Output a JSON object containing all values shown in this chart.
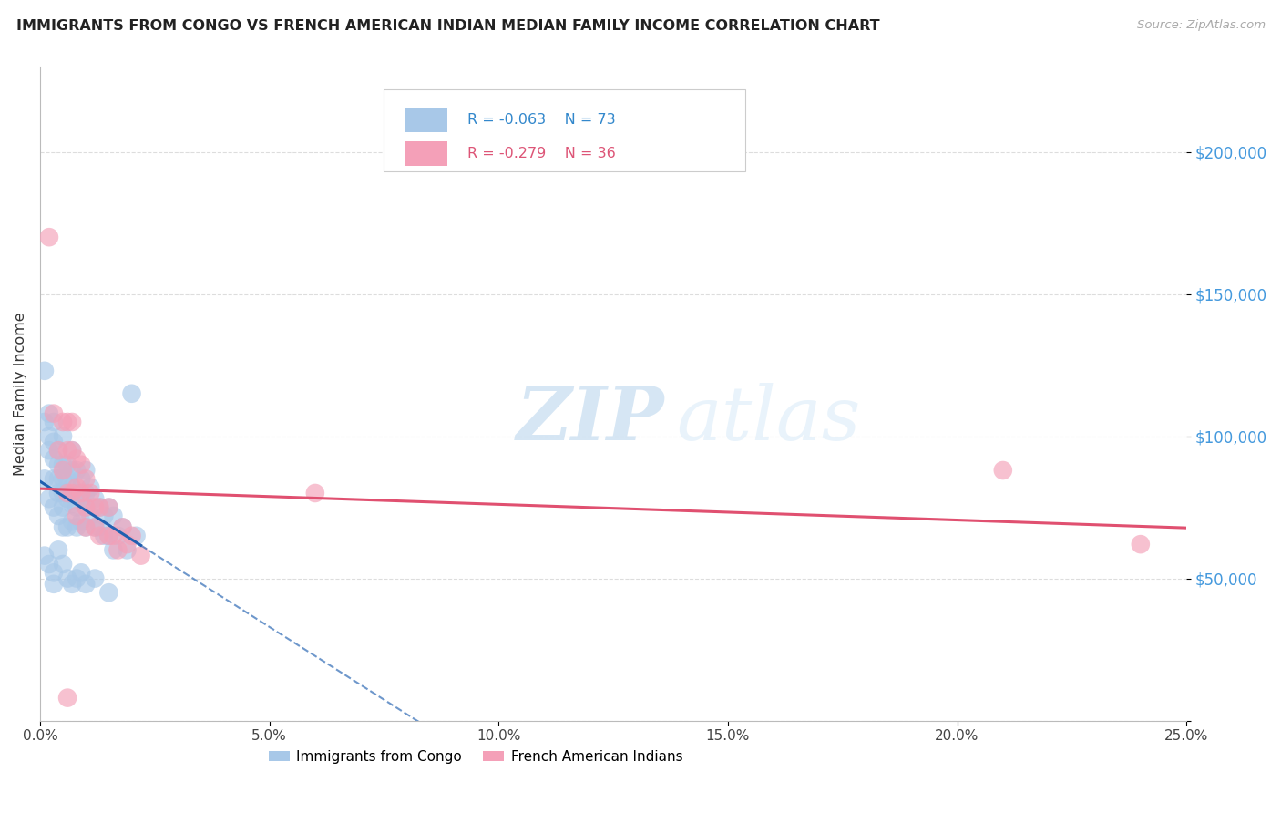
{
  "title": "IMMIGRANTS FROM CONGO VS FRENCH AMERICAN INDIAN MEDIAN FAMILY INCOME CORRELATION CHART",
  "source": "Source: ZipAtlas.com",
  "ylabel": "Median Family Income",
  "xmin": 0.0,
  "xmax": 0.25,
  "ymin": 0,
  "ymax": 230000,
  "legend_r1": "R = -0.063",
  "legend_n1": "N = 73",
  "legend_r2": "R = -0.279",
  "legend_n2": "N = 36",
  "color_blue": "#A8C8E8",
  "color_pink": "#F4A0B8",
  "color_blue_line": "#2060B0",
  "color_pink_line": "#E05070",
  "watermark_zip": "ZIP",
  "watermark_atlas": "atlas",
  "yticks": [
    0,
    50000,
    100000,
    150000,
    200000
  ],
  "ytick_labels": [
    "",
    "$50,000",
    "$100,000",
    "$150,000",
    "$200,000"
  ],
  "xticks": [
    0.0,
    0.05,
    0.1,
    0.15,
    0.2,
    0.25
  ],
  "xtick_labels": [
    "0.0%",
    "5.0%",
    "10.0%",
    "15.0%",
    "20.0%",
    "25.0%"
  ],
  "blue_x": [
    0.001,
    0.001,
    0.001,
    0.002,
    0.002,
    0.002,
    0.002,
    0.003,
    0.003,
    0.003,
    0.003,
    0.003,
    0.004,
    0.004,
    0.004,
    0.004,
    0.004,
    0.005,
    0.005,
    0.005,
    0.005,
    0.005,
    0.005,
    0.006,
    0.006,
    0.006,
    0.006,
    0.007,
    0.007,
    0.007,
    0.007,
    0.007,
    0.008,
    0.008,
    0.008,
    0.008,
    0.009,
    0.009,
    0.009,
    0.01,
    0.01,
    0.01,
    0.01,
    0.011,
    0.011,
    0.012,
    0.012,
    0.013,
    0.013,
    0.014,
    0.014,
    0.015,
    0.015,
    0.016,
    0.016,
    0.017,
    0.018,
    0.019,
    0.02,
    0.021,
    0.001,
    0.002,
    0.003,
    0.003,
    0.004,
    0.005,
    0.006,
    0.007,
    0.008,
    0.009,
    0.01,
    0.012,
    0.015
  ],
  "blue_y": [
    123000,
    105000,
    85000,
    108000,
    100000,
    95000,
    78000,
    105000,
    98000,
    92000,
    85000,
    75000,
    95000,
    90000,
    85000,
    80000,
    72000,
    100000,
    90000,
    85000,
    80000,
    75000,
    68000,
    90000,
    85000,
    78000,
    68000,
    95000,
    88000,
    82000,
    76000,
    70000,
    88000,
    80000,
    75000,
    68000,
    85000,
    78000,
    70000,
    88000,
    80000,
    75000,
    68000,
    82000,
    72000,
    78000,
    68000,
    75000,
    68000,
    72000,
    65000,
    75000,
    65000,
    72000,
    60000,
    65000,
    68000,
    60000,
    115000,
    65000,
    58000,
    55000,
    52000,
    48000,
    60000,
    55000,
    50000,
    48000,
    50000,
    52000,
    48000,
    50000,
    45000
  ],
  "pink_x": [
    0.002,
    0.003,
    0.004,
    0.005,
    0.005,
    0.006,
    0.006,
    0.006,
    0.007,
    0.007,
    0.007,
    0.008,
    0.008,
    0.008,
    0.009,
    0.009,
    0.01,
    0.01,
    0.01,
    0.011,
    0.012,
    0.012,
    0.013,
    0.013,
    0.015,
    0.015,
    0.016,
    0.017,
    0.018,
    0.019,
    0.02,
    0.022,
    0.006,
    0.06,
    0.21,
    0.24
  ],
  "pink_y": [
    170000,
    108000,
    95000,
    105000,
    88000,
    95000,
    105000,
    80000,
    105000,
    95000,
    80000,
    92000,
    82000,
    72000,
    90000,
    80000,
    85000,
    75000,
    68000,
    80000,
    75000,
    68000,
    75000,
    65000,
    75000,
    65000,
    65000,
    60000,
    68000,
    62000,
    65000,
    58000,
    8000,
    80000,
    88000,
    62000
  ]
}
